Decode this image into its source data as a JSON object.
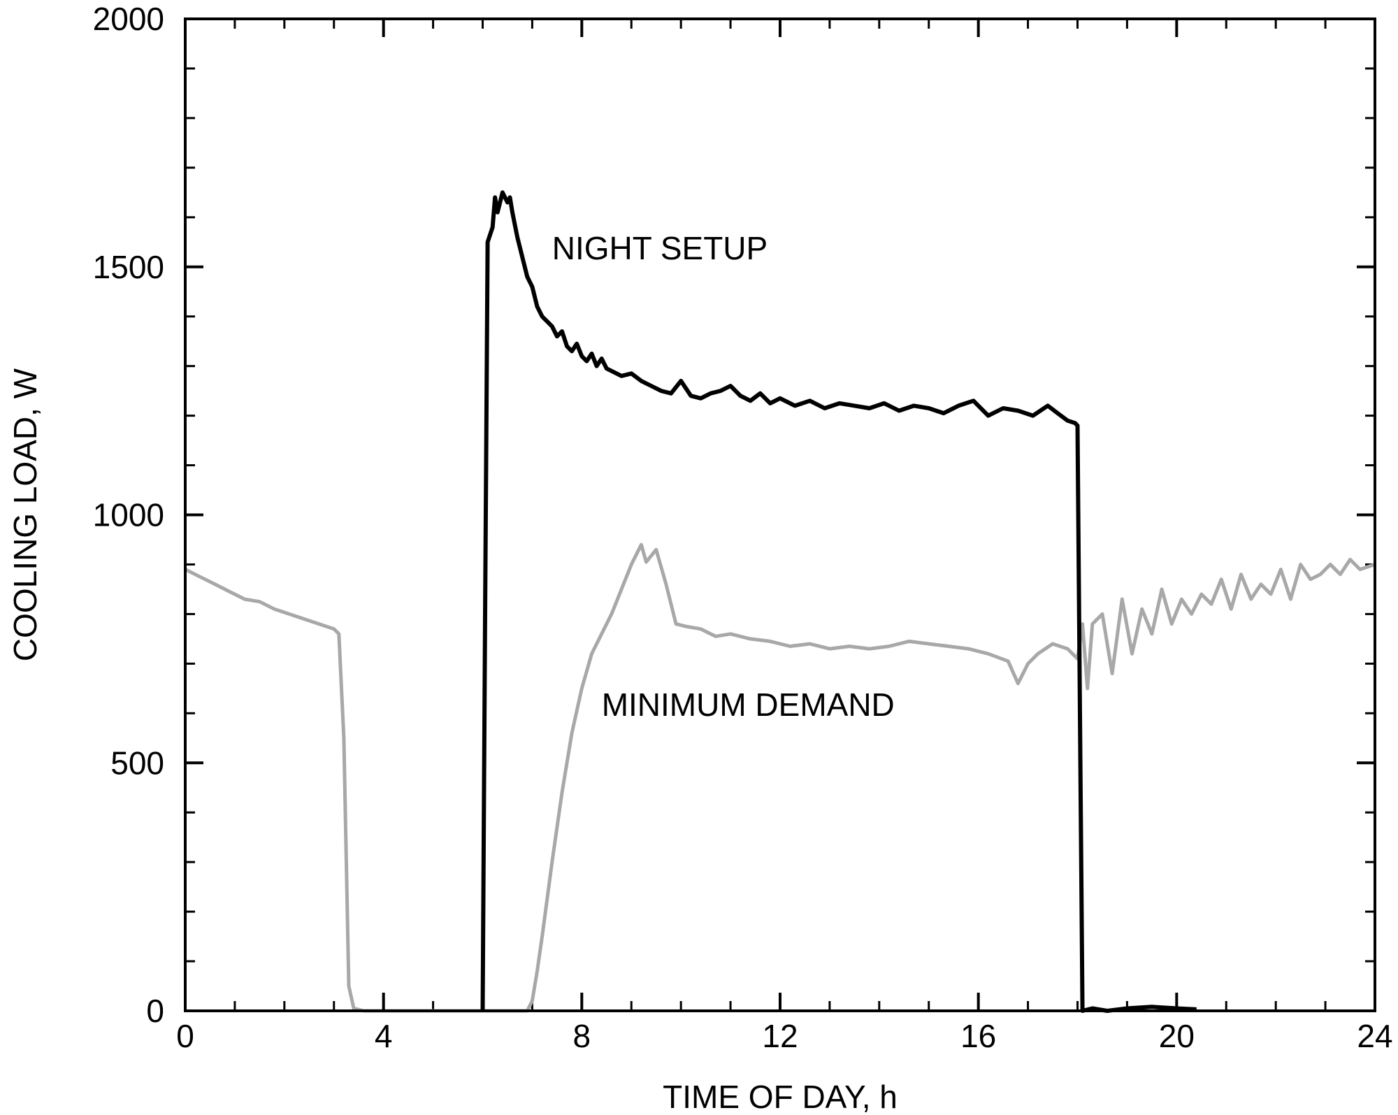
{
  "chart_data": {
    "type": "line",
    "title": "",
    "xlabel": "TIME OF DAY, h",
    "ylabel": "COOLING LOAD, W",
    "xlim": [
      0,
      24
    ],
    "ylim": [
      0,
      2000
    ],
    "x_ticks": [
      0,
      4,
      8,
      12,
      16,
      20,
      24
    ],
    "y_ticks": [
      0,
      500,
      1000,
      1500,
      2000
    ],
    "x_minor_step": 1,
    "y_minor_step": 100,
    "grid": false,
    "legend": "none",
    "annotations": [
      {
        "text": "NIGHT SETUP",
        "x": 7.4,
        "y": 1515
      },
      {
        "text": "MINIMUM DEMAND",
        "x": 8.4,
        "y": 595
      }
    ],
    "series": [
      {
        "name": "NIGHT SETUP",
        "color": "#000000",
        "x": [
          6.0,
          6.05,
          6.1,
          6.2,
          6.25,
          6.3,
          6.4,
          6.5,
          6.55,
          6.6,
          6.7,
          6.8,
          6.9,
          7.0,
          7.1,
          7.2,
          7.3,
          7.4,
          7.5,
          7.6,
          7.7,
          7.8,
          7.9,
          8.0,
          8.1,
          8.2,
          8.3,
          8.4,
          8.5,
          8.6,
          8.8,
          9.0,
          9.2,
          9.4,
          9.6,
          9.8,
          10.0,
          10.2,
          10.4,
          10.6,
          10.8,
          11.0,
          11.2,
          11.4,
          11.6,
          11.8,
          12.0,
          12.3,
          12.6,
          12.9,
          13.2,
          13.5,
          13.8,
          14.1,
          14.4,
          14.7,
          15.0,
          15.3,
          15.6,
          15.9,
          16.2,
          16.5,
          16.8,
          17.1,
          17.4,
          17.6,
          17.8,
          17.95,
          18.0,
          18.1,
          18.3,
          18.6,
          19.0,
          19.5,
          20.0,
          20.4
        ],
        "y": [
          0,
          800,
          1550,
          1580,
          1640,
          1610,
          1650,
          1630,
          1640,
          1610,
          1560,
          1520,
          1480,
          1460,
          1420,
          1400,
          1390,
          1380,
          1360,
          1370,
          1340,
          1330,
          1345,
          1320,
          1310,
          1325,
          1300,
          1315,
          1295,
          1290,
          1280,
          1285,
          1270,
          1260,
          1250,
          1245,
          1270,
          1240,
          1235,
          1245,
          1250,
          1260,
          1240,
          1230,
          1245,
          1225,
          1235,
          1220,
          1230,
          1215,
          1225,
          1220,
          1215,
          1225,
          1210,
          1220,
          1215,
          1205,
          1220,
          1230,
          1200,
          1215,
          1210,
          1200,
          1220,
          1205,
          1190,
          1185,
          1180,
          0,
          5,
          0,
          5,
          8,
          5,
          3
        ]
      },
      {
        "name": "MINIMUM DEMAND",
        "color": "#a8a8a8",
        "x": [
          0.0,
          0.3,
          0.6,
          0.9,
          1.2,
          1.5,
          1.8,
          2.1,
          2.4,
          2.7,
          3.0,
          3.1,
          3.2,
          3.3,
          3.4,
          3.6,
          4.0,
          5.0,
          6.0,
          6.9,
          7.0,
          7.1,
          7.2,
          7.4,
          7.6,
          7.8,
          8.0,
          8.2,
          8.4,
          8.6,
          8.8,
          9.0,
          9.2,
          9.3,
          9.5,
          9.7,
          9.9,
          10.1,
          10.4,
          10.7,
          11.0,
          11.4,
          11.8,
          12.2,
          12.6,
          13.0,
          13.4,
          13.8,
          14.2,
          14.6,
          15.0,
          15.4,
          15.8,
          16.2,
          16.6,
          16.8,
          17.0,
          17.2,
          17.5,
          17.8,
          18.0,
          18.1,
          18.2,
          18.3,
          18.5,
          18.7,
          18.9,
          19.1,
          19.3,
          19.5,
          19.7,
          19.9,
          20.1,
          20.3,
          20.5,
          20.7,
          20.9,
          21.1,
          21.3,
          21.5,
          21.7,
          21.9,
          22.1,
          22.3,
          22.5,
          22.7,
          22.9,
          23.1,
          23.3,
          23.5,
          23.7,
          24.0
        ],
        "y": [
          890,
          875,
          860,
          845,
          830,
          825,
          810,
          800,
          790,
          780,
          770,
          760,
          550,
          50,
          5,
          0,
          0,
          0,
          0,
          0,
          20,
          80,
          150,
          300,
          440,
          560,
          650,
          720,
          760,
          800,
          850,
          900,
          940,
          905,
          930,
          860,
          780,
          775,
          770,
          755,
          760,
          750,
          745,
          735,
          740,
          730,
          735,
          730,
          735,
          745,
          740,
          735,
          730,
          720,
          705,
          660,
          700,
          720,
          740,
          730,
          710,
          780,
          650,
          780,
          800,
          680,
          830,
          720,
          810,
          760,
          850,
          780,
          830,
          800,
          840,
          820,
          870,
          810,
          880,
          830,
          860,
          840,
          890,
          830,
          900,
          870,
          880,
          900,
          880,
          910,
          890,
          900
        ]
      }
    ]
  }
}
